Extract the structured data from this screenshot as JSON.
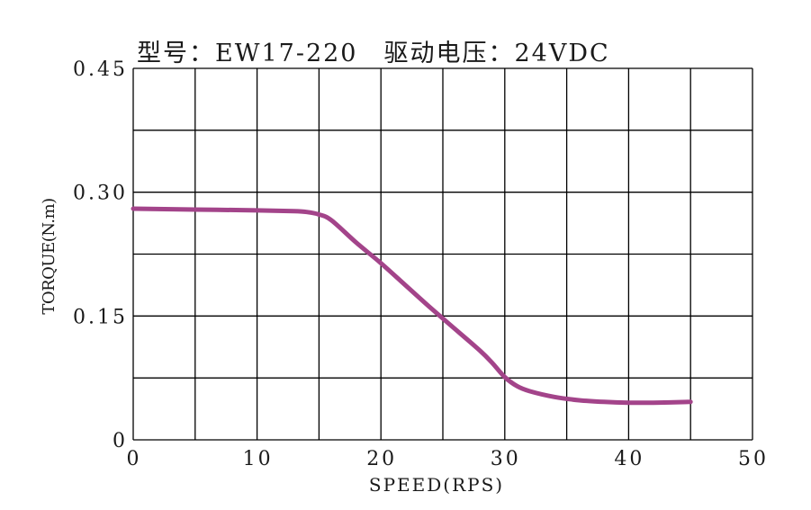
{
  "chart_data": {
    "type": "line",
    "title": "型号：EW17-220　驱动电压：24VDC",
    "xlabel": "SPEED(RPS)",
    "ylabel": "TORQUE(N.m)",
    "xlim": [
      0,
      50
    ],
    "ylim": [
      0,
      0.45
    ],
    "x_ticks": [
      "0",
      "10",
      "20",
      "30",
      "40",
      "50"
    ],
    "y_ticks": [
      "0",
      "0.15",
      "0.30",
      "0.45"
    ],
    "grid": true,
    "x_grid_step": 5,
    "y_grid_step": 0.075,
    "series": [
      {
        "color": "#a3448a",
        "x": [
          0,
          5,
          10,
          13,
          14,
          15,
          16,
          18,
          20,
          22,
          24,
          26,
          28,
          29,
          30,
          31,
          32,
          34,
          36,
          38,
          40,
          42,
          45
        ],
        "y": [
          0.28,
          0.279,
          0.278,
          0.277,
          0.276,
          0.273,
          0.266,
          0.239,
          0.214,
          0.187,
          0.16,
          0.134,
          0.108,
          0.093,
          0.076,
          0.065,
          0.059,
          0.052,
          0.048,
          0.046,
          0.045,
          0.045,
          0.046
        ]
      }
    ]
  }
}
